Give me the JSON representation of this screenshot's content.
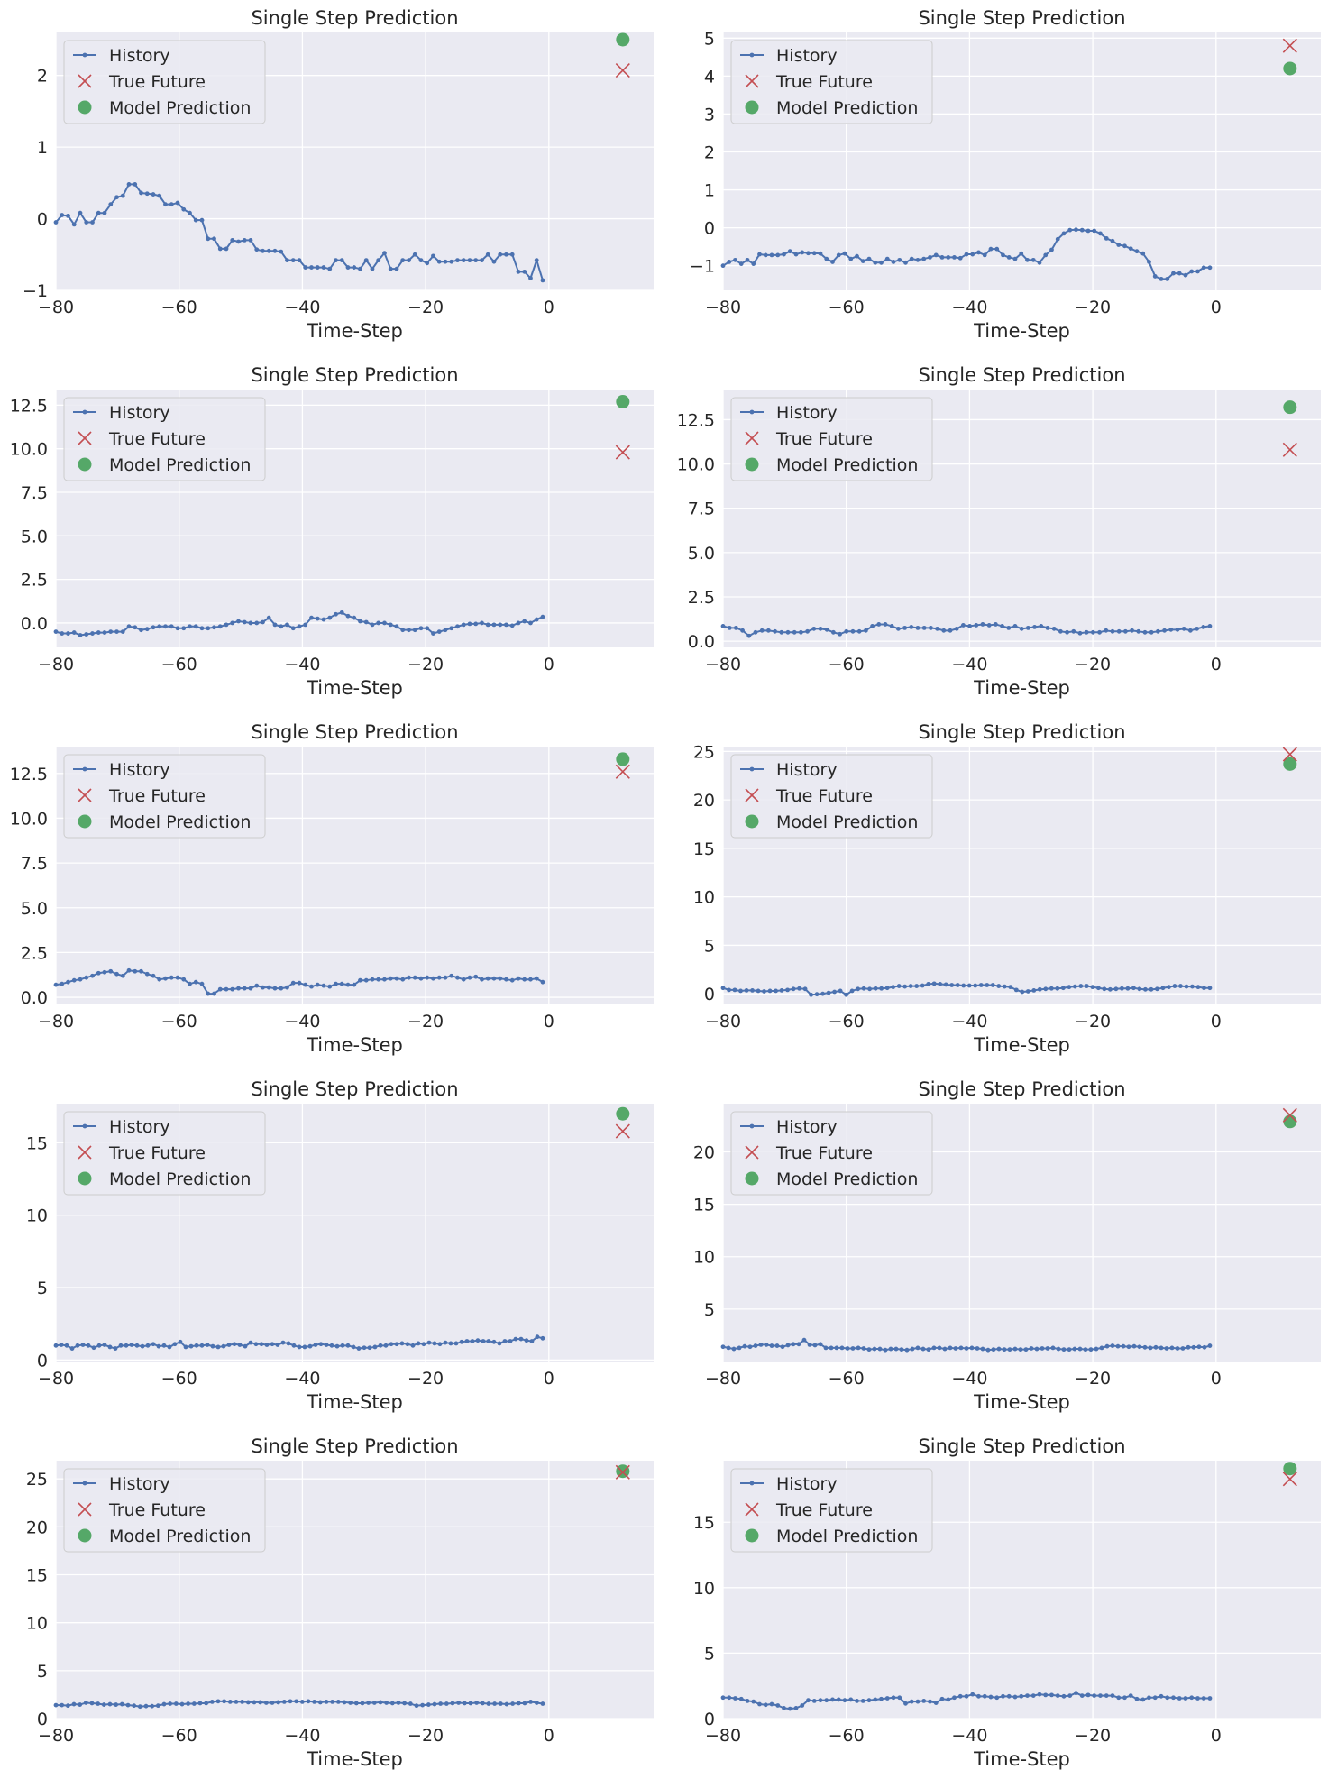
{
  "figure": {
    "background": "#ffffff",
    "axes_background": "#eaeaf2",
    "grid_color": "#ffffff",
    "colors": {
      "history": "#4c72b0",
      "true_future": "#c44e52",
      "model_prediction": "#55a868"
    },
    "legend_labels": [
      "History",
      "True Future",
      "Model Prediction"
    ],
    "legend_placement": "upper-left"
  },
  "chart_data": [
    {
      "type": "line",
      "title": "Single Step Prediction",
      "xlabel": "Time-Step",
      "ylabel": "",
      "xlim": [
        -80,
        17
      ],
      "ylim": [
        -1.0,
        2.6
      ],
      "xticks": [
        -80,
        -60,
        -40,
        -20,
        0
      ],
      "yticks": [
        -1,
        0,
        1,
        2
      ],
      "grid": true,
      "history": [
        -0.05,
        0.05,
        0.04,
        -0.08,
        0.08,
        -0.05,
        -0.05,
        0.08,
        0.08,
        0.2,
        0.3,
        0.32,
        0.48,
        0.48,
        0.36,
        0.35,
        0.34,
        0.32,
        0.2,
        0.2,
        0.22,
        0.13,
        0.08,
        -0.02,
        -0.02,
        -0.28,
        -0.28,
        -0.42,
        -0.42,
        -0.3,
        -0.32,
        -0.3,
        -0.3,
        -0.43,
        -0.45,
        -0.45,
        -0.45,
        -0.46,
        -0.58,
        -0.58,
        -0.58,
        -0.68,
        -0.68,
        -0.68,
        -0.68,
        -0.7,
        -0.58,
        -0.58,
        -0.68,
        -0.68,
        -0.7,
        -0.58,
        -0.7,
        -0.58,
        -0.48,
        -0.7,
        -0.7,
        -0.58,
        -0.58,
        -0.5,
        -0.58,
        -0.62,
        -0.52,
        -0.6,
        -0.6,
        -0.6,
        -0.58,
        -0.58,
        -0.58,
        -0.58,
        -0.58,
        -0.5,
        -0.6,
        -0.5,
        -0.5,
        -0.5,
        -0.74,
        -0.74,
        -0.83,
        -0.58,
        -0.86
      ],
      "true_future": {
        "x": 12,
        "y": 2.07
      },
      "model_prediction": {
        "x": 12,
        "y": 2.5
      }
    },
    {
      "type": "line",
      "title": "Single Step Prediction",
      "xlabel": "Time-Step",
      "ylabel": "",
      "xlim": [
        -80,
        17
      ],
      "ylim": [
        -1.65,
        5.15
      ],
      "xticks": [
        -80,
        -60,
        -40,
        -20,
        0
      ],
      "yticks": [
        -1,
        0,
        1,
        2,
        3,
        4,
        5
      ],
      "grid": true,
      "history": [
        -1.0,
        -0.9,
        -0.85,
        -0.95,
        -0.85,
        -0.95,
        -0.7,
        -0.72,
        -0.72,
        -0.72,
        -0.7,
        -0.62,
        -0.7,
        -0.65,
        -0.67,
        -0.67,
        -0.68,
        -0.82,
        -0.9,
        -0.72,
        -0.68,
        -0.82,
        -0.75,
        -0.88,
        -0.82,
        -0.92,
        -0.92,
        -0.82,
        -0.9,
        -0.85,
        -0.92,
        -0.82,
        -0.85,
        -0.82,
        -0.78,
        -0.72,
        -0.78,
        -0.78,
        -0.78,
        -0.8,
        -0.7,
        -0.7,
        -0.65,
        -0.72,
        -0.56,
        -0.56,
        -0.72,
        -0.78,
        -0.82,
        -0.68,
        -0.85,
        -0.85,
        -0.92,
        -0.72,
        -0.58,
        -0.3,
        -0.15,
        -0.06,
        -0.05,
        -0.06,
        -0.08,
        -0.08,
        -0.15,
        -0.28,
        -0.35,
        -0.45,
        -0.48,
        -0.55,
        -0.62,
        -0.68,
        -0.9,
        -1.28,
        -1.35,
        -1.35,
        -1.2,
        -1.2,
        -1.25,
        -1.15,
        -1.15,
        -1.05,
        -1.05
      ],
      "true_future": {
        "x": 12,
        "y": 4.8
      },
      "model_prediction": {
        "x": 12,
        "y": 4.2
      }
    },
    {
      "type": "line",
      "title": "Single Step Prediction",
      "xlabel": "Time-Step",
      "ylabel": "",
      "xlim": [
        -80,
        17
      ],
      "ylim": [
        -1.4,
        13.4
      ],
      "xticks": [
        -80,
        -60,
        -40,
        -20,
        0
      ],
      "yticks": [
        0.0,
        2.5,
        5.0,
        7.5,
        10.0,
        12.5
      ],
      "ytickfmt": 1,
      "grid": true,
      "history": [
        -0.5,
        -0.6,
        -0.6,
        -0.55,
        -0.7,
        -0.65,
        -0.6,
        -0.55,
        -0.55,
        -0.5,
        -0.5,
        -0.5,
        -0.2,
        -0.25,
        -0.4,
        -0.35,
        -0.25,
        -0.2,
        -0.2,
        -0.2,
        -0.3,
        -0.3,
        -0.2,
        -0.2,
        -0.3,
        -0.3,
        -0.25,
        -0.2,
        -0.1,
        0.0,
        0.1,
        0.05,
        0.0,
        0.0,
        0.05,
        0.3,
        -0.1,
        -0.2,
        -0.1,
        -0.3,
        -0.2,
        -0.1,
        0.3,
        0.25,
        0.2,
        0.3,
        0.5,
        0.6,
        0.4,
        0.3,
        0.1,
        0.05,
        -0.1,
        0.0,
        0.0,
        -0.1,
        -0.2,
        -0.4,
        -0.4,
        -0.4,
        -0.3,
        -0.3,
        -0.6,
        -0.5,
        -0.4,
        -0.3,
        -0.2,
        -0.1,
        -0.05,
        -0.05,
        0.0,
        -0.1,
        -0.1,
        -0.1,
        -0.1,
        -0.15,
        0.0,
        0.1,
        0.0,
        0.2,
        0.35
      ],
      "true_future": {
        "x": 12,
        "y": 9.8
      },
      "model_prediction": {
        "x": 12,
        "y": 12.7
      }
    },
    {
      "type": "line",
      "title": "Single Step Prediction",
      "xlabel": "Time-Step",
      "ylabel": "",
      "xlim": [
        -80,
        17
      ],
      "ylim": [
        -0.35,
        14.2
      ],
      "xticks": [
        -80,
        -60,
        -40,
        -20,
        0
      ],
      "yticks": [
        0.0,
        2.5,
        5.0,
        7.5,
        10.0,
        12.5
      ],
      "ytickfmt": 1,
      "grid": true,
      "history": [
        0.85,
        0.75,
        0.75,
        0.6,
        0.3,
        0.5,
        0.6,
        0.6,
        0.55,
        0.5,
        0.5,
        0.5,
        0.5,
        0.55,
        0.7,
        0.7,
        0.65,
        0.5,
        0.4,
        0.55,
        0.55,
        0.55,
        0.6,
        0.85,
        0.95,
        0.95,
        0.85,
        0.7,
        0.75,
        0.8,
        0.75,
        0.75,
        0.75,
        0.7,
        0.6,
        0.6,
        0.7,
        0.9,
        0.85,
        0.9,
        0.95,
        0.9,
        0.95,
        0.85,
        0.75,
        0.85,
        0.7,
        0.75,
        0.8,
        0.85,
        0.75,
        0.7,
        0.55,
        0.5,
        0.55,
        0.45,
        0.5,
        0.5,
        0.5,
        0.6,
        0.55,
        0.55,
        0.55,
        0.6,
        0.55,
        0.5,
        0.5,
        0.55,
        0.6,
        0.65,
        0.65,
        0.7,
        0.6,
        0.7,
        0.8,
        0.85
      ],
      "true_future": {
        "x": 12,
        "y": 10.8
      },
      "model_prediction": {
        "x": 12,
        "y": 13.2
      }
    },
    {
      "type": "line",
      "title": "Single Step Prediction",
      "xlabel": "Time-Step",
      "ylabel": "",
      "xlim": [
        -80,
        17
      ],
      "ylim": [
        -0.4,
        14.0
      ],
      "xticks": [
        -80,
        -60,
        -40,
        -20,
        0
      ],
      "yticks": [
        0.0,
        2.5,
        5.0,
        7.5,
        10.0,
        12.5
      ],
      "ytickfmt": 1,
      "grid": true,
      "history": [
        0.7,
        0.75,
        0.85,
        0.95,
        1.0,
        1.1,
        1.2,
        1.35,
        1.4,
        1.45,
        1.3,
        1.2,
        1.5,
        1.45,
        1.45,
        1.3,
        1.2,
        1.0,
        1.05,
        1.1,
        1.1,
        1.0,
        0.75,
        0.85,
        0.75,
        0.2,
        0.2,
        0.45,
        0.45,
        0.45,
        0.5,
        0.5,
        0.5,
        0.65,
        0.55,
        0.55,
        0.5,
        0.5,
        0.55,
        0.8,
        0.8,
        0.7,
        0.6,
        0.7,
        0.65,
        0.6,
        0.75,
        0.75,
        0.7,
        0.7,
        0.95,
        0.95,
        1.0,
        1.0,
        1.0,
        1.05,
        1.05,
        1.0,
        1.1,
        1.1,
        1.05,
        1.1,
        1.05,
        1.1,
        1.1,
        1.2,
        1.1,
        1.0,
        1.1,
        1.15,
        1.0,
        1.05,
        1.05,
        1.05,
        1.0,
        0.95,
        1.05,
        1.0,
        1.0,
        1.05,
        0.85
      ],
      "true_future": {
        "x": 12,
        "y": 12.6
      },
      "model_prediction": {
        "x": 12,
        "y": 13.3
      }
    },
    {
      "type": "line",
      "title": "Single Step Prediction",
      "xlabel": "Time-Step",
      "ylabel": "",
      "xlim": [
        -80,
        17
      ],
      "ylim": [
        -1.1,
        25.5
      ],
      "xticks": [
        -80,
        -60,
        -40,
        -20,
        0
      ],
      "yticks": [
        0,
        5,
        10,
        15,
        20,
        25
      ],
      "grid": true,
      "history": [
        0.6,
        0.4,
        0.4,
        0.3,
        0.35,
        0.35,
        0.3,
        0.25,
        0.3,
        0.3,
        0.35,
        0.4,
        0.5,
        0.55,
        0.5,
        -0.1,
        -0.05,
        0.0,
        0.1,
        0.2,
        0.3,
        -0.1,
        0.3,
        0.5,
        0.55,
        0.5,
        0.55,
        0.55,
        0.6,
        0.7,
        0.8,
        0.75,
        0.8,
        0.8,
        0.85,
        1.0,
        1.05,
        1.0,
        0.95,
        0.9,
        0.9,
        0.85,
        0.85,
        0.85,
        0.9,
        0.9,
        0.9,
        0.8,
        0.75,
        0.7,
        0.4,
        0.2,
        0.25,
        0.35,
        0.45,
        0.5,
        0.55,
        0.55,
        0.6,
        0.7,
        0.75,
        0.8,
        0.8,
        0.7,
        0.6,
        0.5,
        0.45,
        0.5,
        0.55,
        0.55,
        0.6,
        0.5,
        0.45,
        0.45,
        0.5,
        0.6,
        0.7,
        0.8,
        0.8,
        0.75,
        0.75,
        0.7,
        0.6,
        0.6
      ],
      "true_future": {
        "x": 12,
        "y": 24.7
      },
      "model_prediction": {
        "x": 12,
        "y": 23.7
      }
    },
    {
      "type": "line",
      "title": "Single Step Prediction",
      "xlabel": "Time-Step",
      "ylabel": "",
      "xlim": [
        -80,
        17
      ],
      "ylim": [
        -0.1,
        17.7
      ],
      "xticks": [
        -80,
        -60,
        -40,
        -20,
        0
      ],
      "yticks": [
        0,
        5,
        10,
        15
      ],
      "grid": true,
      "history": [
        1.0,
        1.05,
        1.0,
        0.8,
        1.0,
        1.05,
        1.0,
        0.85,
        1.0,
        1.05,
        0.9,
        0.8,
        1.0,
        1.0,
        1.05,
        1.0,
        0.95,
        1.0,
        1.1,
        0.95,
        1.0,
        0.9,
        1.1,
        1.25,
        0.9,
        0.95,
        1.0,
        1.0,
        1.05,
        0.95,
        0.9,
        0.95,
        1.05,
        1.1,
        1.05,
        0.95,
        1.2,
        1.1,
        1.1,
        1.05,
        1.1,
        1.05,
        1.2,
        1.15,
        1.0,
        0.9,
        0.9,
        0.95,
        1.05,
        1.1,
        1.05,
        1.0,
        0.95,
        1.0,
        1.0,
        0.9,
        0.8,
        0.85,
        0.85,
        0.9,
        1.0,
        1.0,
        1.1,
        1.1,
        1.15,
        1.1,
        1.0,
        1.15,
        1.1,
        1.2,
        1.15,
        1.1,
        1.2,
        1.15,
        1.15,
        1.25,
        1.3,
        1.3,
        1.35,
        1.3,
        1.3,
        1.25,
        1.15,
        1.3,
        1.3,
        1.45,
        1.45,
        1.35,
        1.3,
        1.6,
        1.5
      ],
      "true_future": {
        "x": 12,
        "y": 15.8
      },
      "model_prediction": {
        "x": 12,
        "y": 17.0
      }
    },
    {
      "type": "line",
      "title": "Single Step Prediction",
      "xlabel": "Time-Step",
      "ylabel": "",
      "xlim": [
        -80,
        17
      ],
      "ylim": [
        0.0,
        24.6
      ],
      "xticks": [
        -80,
        -60,
        -40,
        -20,
        0
      ],
      "yticks": [
        5,
        10,
        15,
        20
      ],
      "grid": true,
      "history": [
        1.4,
        1.3,
        1.2,
        1.3,
        1.45,
        1.4,
        1.5,
        1.6,
        1.6,
        1.5,
        1.5,
        1.4,
        1.55,
        1.65,
        1.65,
        2.05,
        1.6,
        1.55,
        1.65,
        1.3,
        1.3,
        1.3,
        1.3,
        1.25,
        1.25,
        1.3,
        1.25,
        1.15,
        1.2,
        1.2,
        1.1,
        1.2,
        1.2,
        1.15,
        1.1,
        1.2,
        1.3,
        1.2,
        1.15,
        1.3,
        1.3,
        1.2,
        1.3,
        1.25,
        1.3,
        1.25,
        1.3,
        1.25,
        1.2,
        1.1,
        1.15,
        1.2,
        1.15,
        1.15,
        1.2,
        1.15,
        1.15,
        1.25,
        1.2,
        1.25,
        1.25,
        1.3,
        1.2,
        1.15,
        1.15,
        1.2,
        1.2,
        1.15,
        1.15,
        1.2,
        1.3,
        1.45,
        1.5,
        1.45,
        1.45,
        1.4,
        1.45,
        1.4,
        1.35,
        1.3,
        1.35,
        1.3,
        1.25,
        1.3,
        1.25,
        1.25,
        1.35,
        1.35,
        1.4,
        1.35,
        1.5
      ],
      "true_future": {
        "x": 12,
        "y": 23.5
      },
      "model_prediction": {
        "x": 12,
        "y": 22.9
      }
    },
    {
      "type": "line",
      "title": "Single Step Prediction",
      "xlabel": "Time-Step",
      "ylabel": "",
      "xlim": [
        -80,
        17
      ],
      "ylim": [
        0.0,
        26.9
      ],
      "xticks": [
        -80,
        -60,
        -40,
        -20,
        0
      ],
      "yticks": [
        0,
        5,
        10,
        15,
        20,
        25
      ],
      "grid": true,
      "history": [
        1.4,
        1.4,
        1.35,
        1.5,
        1.45,
        1.65,
        1.6,
        1.55,
        1.45,
        1.5,
        1.45,
        1.5,
        1.4,
        1.35,
        1.25,
        1.3,
        1.3,
        1.35,
        1.5,
        1.55,
        1.55,
        1.5,
        1.55,
        1.55,
        1.6,
        1.6,
        1.75,
        1.8,
        1.8,
        1.75,
        1.75,
        1.75,
        1.7,
        1.7,
        1.7,
        1.65,
        1.65,
        1.7,
        1.75,
        1.8,
        1.8,
        1.75,
        1.8,
        1.75,
        1.7,
        1.75,
        1.75,
        1.75,
        1.7,
        1.65,
        1.6,
        1.6,
        1.65,
        1.65,
        1.7,
        1.65,
        1.6,
        1.65,
        1.6,
        1.55,
        1.35,
        1.4,
        1.45,
        1.5,
        1.55,
        1.55,
        1.6,
        1.65,
        1.6,
        1.6,
        1.65,
        1.6,
        1.55,
        1.55,
        1.55,
        1.5,
        1.55,
        1.6,
        1.6,
        1.75,
        1.65,
        1.55
      ],
      "true_future": {
        "x": 12,
        "y": 25.7
      },
      "model_prediction": {
        "x": 12,
        "y": 25.8
      }
    },
    {
      "type": "line",
      "title": "Single Step Prediction",
      "xlabel": "Time-Step",
      "ylabel": "",
      "xlim": [
        -80,
        17
      ],
      "ylim": [
        0.0,
        19.7
      ],
      "xticks": [
        -80,
        -60,
        -40,
        -20,
        0
      ],
      "yticks": [
        0,
        5,
        10,
        15
      ],
      "grid": true,
      "history": [
        1.6,
        1.6,
        1.55,
        1.5,
        1.35,
        1.3,
        1.1,
        1.05,
        1.1,
        1.0,
        0.8,
        0.75,
        0.8,
        1.0,
        1.4,
        1.35,
        1.4,
        1.4,
        1.45,
        1.45,
        1.4,
        1.45,
        1.35,
        1.35,
        1.4,
        1.45,
        1.5,
        1.55,
        1.6,
        1.6,
        1.15,
        1.3,
        1.3,
        1.35,
        1.3,
        1.2,
        1.5,
        1.45,
        1.6,
        1.7,
        1.7,
        1.85,
        1.7,
        1.7,
        1.65,
        1.6,
        1.7,
        1.7,
        1.65,
        1.7,
        1.75,
        1.75,
        1.85,
        1.8,
        1.8,
        1.75,
        1.7,
        1.75,
        1.95,
        1.75,
        1.8,
        1.75,
        1.75,
        1.75,
        1.75,
        1.6,
        1.6,
        1.75,
        1.5,
        1.45,
        1.6,
        1.6,
        1.7,
        1.6,
        1.6,
        1.55,
        1.55,
        1.6,
        1.55,
        1.55,
        1.55
      ],
      "true_future": {
        "x": 12,
        "y": 18.3
      },
      "model_prediction": {
        "x": 12,
        "y": 19.1
      }
    }
  ]
}
